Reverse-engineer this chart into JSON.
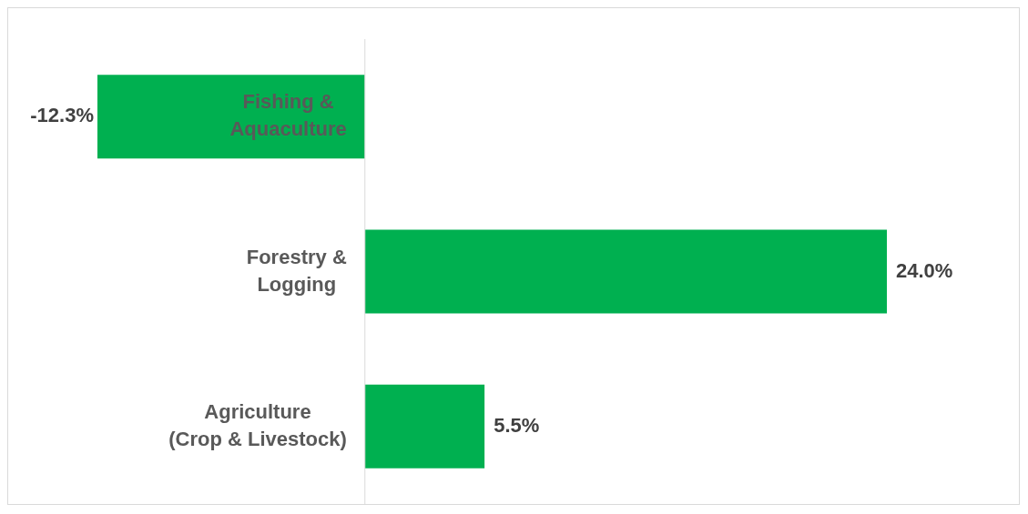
{
  "chart_data": {
    "type": "bar",
    "orientation": "horizontal",
    "categories": [
      "Fishing &\nAquaculture",
      "Forestry &\nLogging",
      "Agriculture\n(Crop & Livestock)"
    ],
    "values": [
      -12.3,
      24.0,
      5.5
    ],
    "color": "#00b050",
    "value_labels": [
      "-12.3%",
      "24.0%",
      "5.5%"
    ],
    "legend": false
  }
}
